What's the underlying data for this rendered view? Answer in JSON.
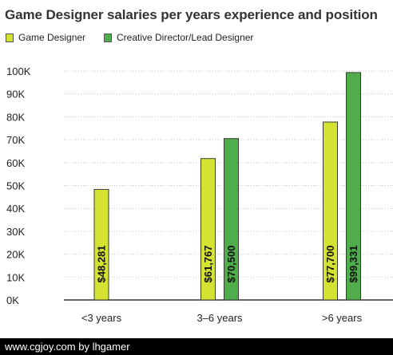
{
  "chart_data": {
    "type": "bar",
    "title": "Game Designer salaries per years experience and position",
    "xlabel": "",
    "ylabel": "",
    "categories": [
      "<3 years",
      "3–6 years",
      ">6 years"
    ],
    "series": [
      {
        "name": "Game Designer",
        "color": "#d4e331",
        "values": [
          48281,
          61767,
          77700
        ],
        "labels": [
          "$48,281",
          "$61,767",
          "$77,700"
        ]
      },
      {
        "name": "Creative Director/Lead Designer",
        "color": "#4fad4c",
        "values": [
          null,
          70500,
          99331
        ],
        "labels": [
          "",
          "$70,500",
          "$99,331"
        ]
      }
    ],
    "ylim": [
      0,
      100000
    ],
    "yticks": [
      0,
      10000,
      20000,
      30000,
      40000,
      50000,
      60000,
      70000,
      80000,
      90000,
      100000
    ],
    "ytick_labels": [
      "0K",
      "10K",
      "20K",
      "30K",
      "40K",
      "50K",
      "60K",
      "70K",
      "80K",
      "90K",
      "100K"
    ],
    "grid": true,
    "legend_position": "top-left"
  },
  "footer": {
    "watermark": "www.cgjoy.com by lhgamer"
  }
}
